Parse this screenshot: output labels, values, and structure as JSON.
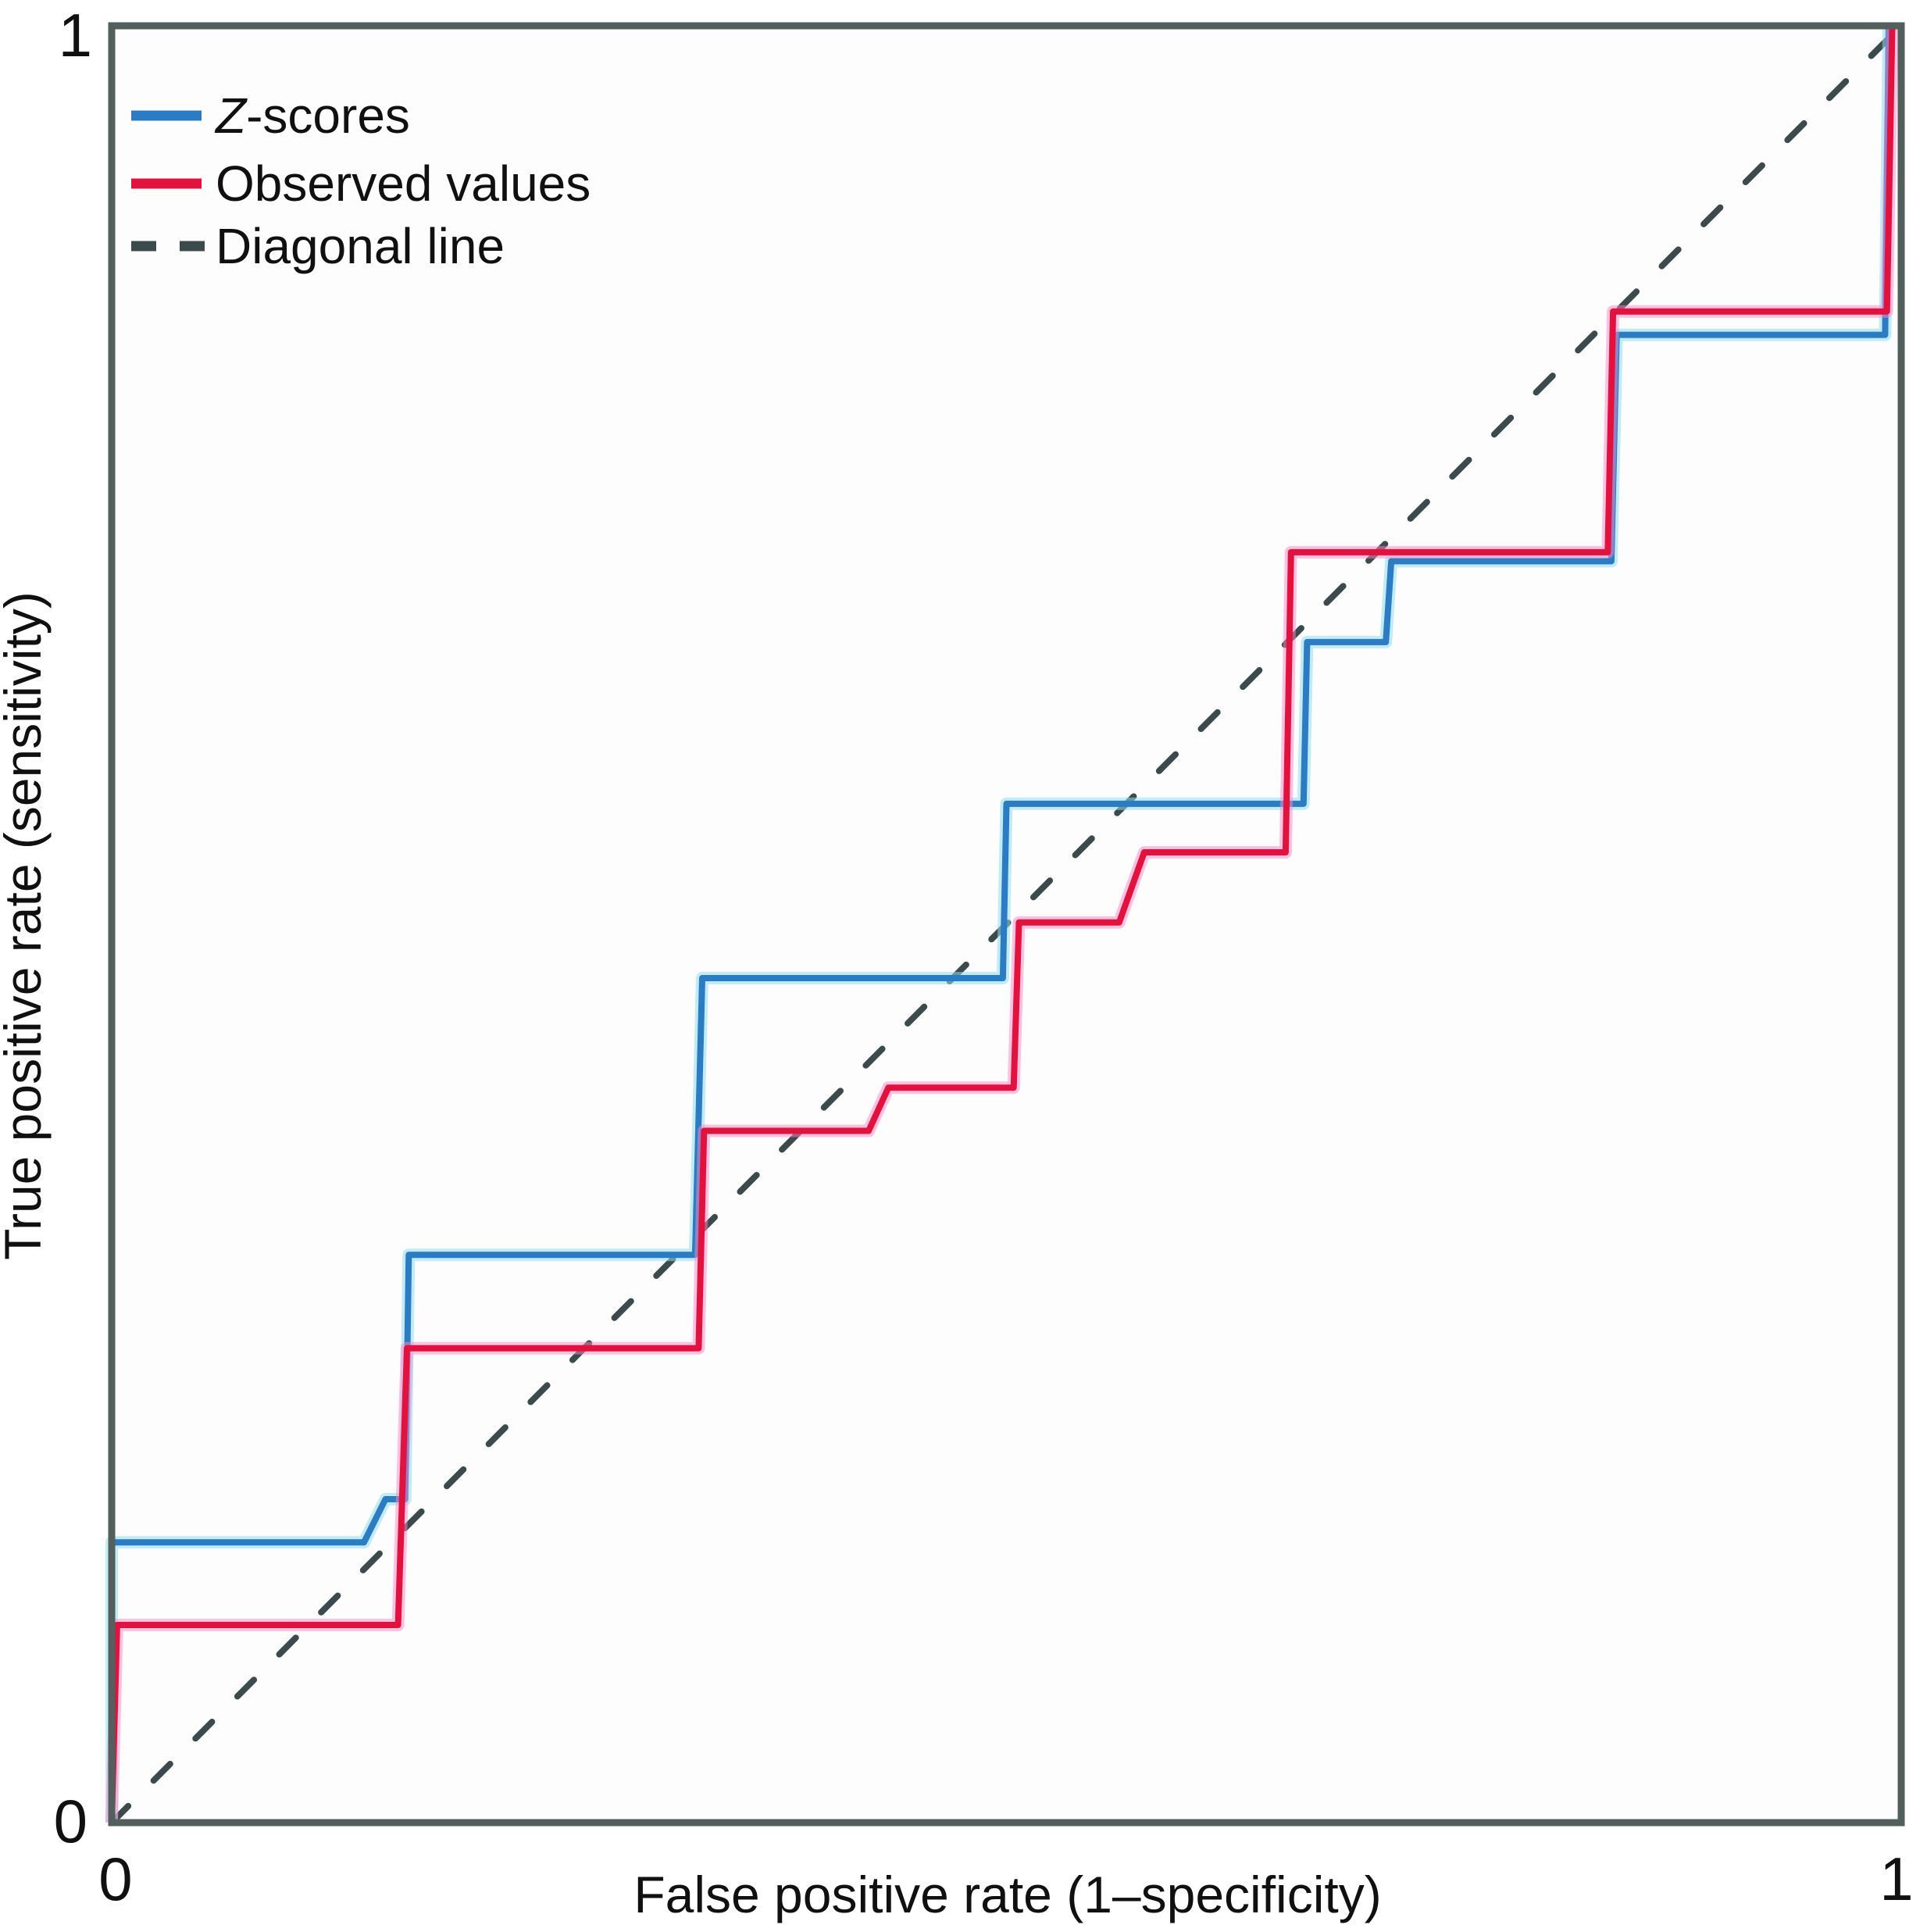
{
  "figure": {
    "background": "#ffffff",
    "frame_color": "#525f5c",
    "axes": {
      "x_label": "False positive rate (1–specificity)",
      "y_label": "True positive rate (sensitivity)",
      "x_tick_left": "0",
      "x_tick_right": "1",
      "y_tick_bottom": "0",
      "y_tick_top": "1"
    },
    "legend": {
      "entries": [
        {
          "prefix": "Z",
          "rest": "-scores"
        },
        {
          "prefix": "",
          "rest": "Observed values"
        },
        {
          "prefix": "",
          "rest": "Diagonal line"
        }
      ]
    }
  },
  "chart_data": {
    "type": "line",
    "subtype": "roc-step-curves",
    "title": "",
    "xlabel": "False positive rate (1–specificity)",
    "ylabel": "True positive rate (sensitivity)",
    "xlim": [
      0,
      1
    ],
    "ylim": [
      0,
      1
    ],
    "grid": false,
    "legend_position": "top-left",
    "x_ticks": [
      0,
      1
    ],
    "y_ticks": [
      0,
      1
    ],
    "series": [
      {
        "name": "Z-scores",
        "color": "#2b7cc2",
        "halo": "#8fdcf2",
        "dashed": false,
        "points": [
          [
            0,
            0
          ],
          [
            0,
            0.156
          ],
          [
            0.141,
            0.156
          ],
          [
            0.153,
            0.18
          ],
          [
            0.164,
            0.18
          ],
          [
            0.166,
            0.316
          ],
          [
            0.326,
            0.316
          ],
          [
            0.33,
            0.47
          ],
          [
            0.498,
            0.47
          ],
          [
            0.5,
            0.567
          ],
          [
            0.666,
            0.567
          ],
          [
            0.668,
            0.657
          ],
          [
            0.712,
            0.657
          ],
          [
            0.715,
            0.702
          ],
          [
            0.838,
            0.702
          ],
          [
            0.841,
            0.828
          ],
          [
            0.991,
            0.828
          ],
          [
            0.993,
            1
          ]
        ]
      },
      {
        "name": "Observed values",
        "color": "#e2123f",
        "halo": "#ff86c7",
        "dashed": false,
        "points": [
          [
            0,
            0
          ],
          [
            0.003,
            0.11
          ],
          [
            0.16,
            0.11
          ],
          [
            0.165,
            0.264
          ],
          [
            0.328,
            0.264
          ],
          [
            0.331,
            0.385
          ],
          [
            0.423,
            0.385
          ],
          [
            0.434,
            0.409
          ],
          [
            0.504,
            0.409
          ],
          [
            0.507,
            0.501
          ],
          [
            0.563,
            0.501
          ],
          [
            0.577,
            0.54
          ],
          [
            0.656,
            0.54
          ],
          [
            0.659,
            0.707
          ],
          [
            0.836,
            0.707
          ],
          [
            0.839,
            0.841
          ],
          [
            0.992,
            0.841
          ],
          [
            0.995,
            1
          ]
        ]
      },
      {
        "name": "Diagonal line",
        "color": "#3b4a4c",
        "halo": null,
        "dashed": true,
        "points": [
          [
            0,
            0
          ],
          [
            1,
            1
          ]
        ]
      }
    ]
  }
}
